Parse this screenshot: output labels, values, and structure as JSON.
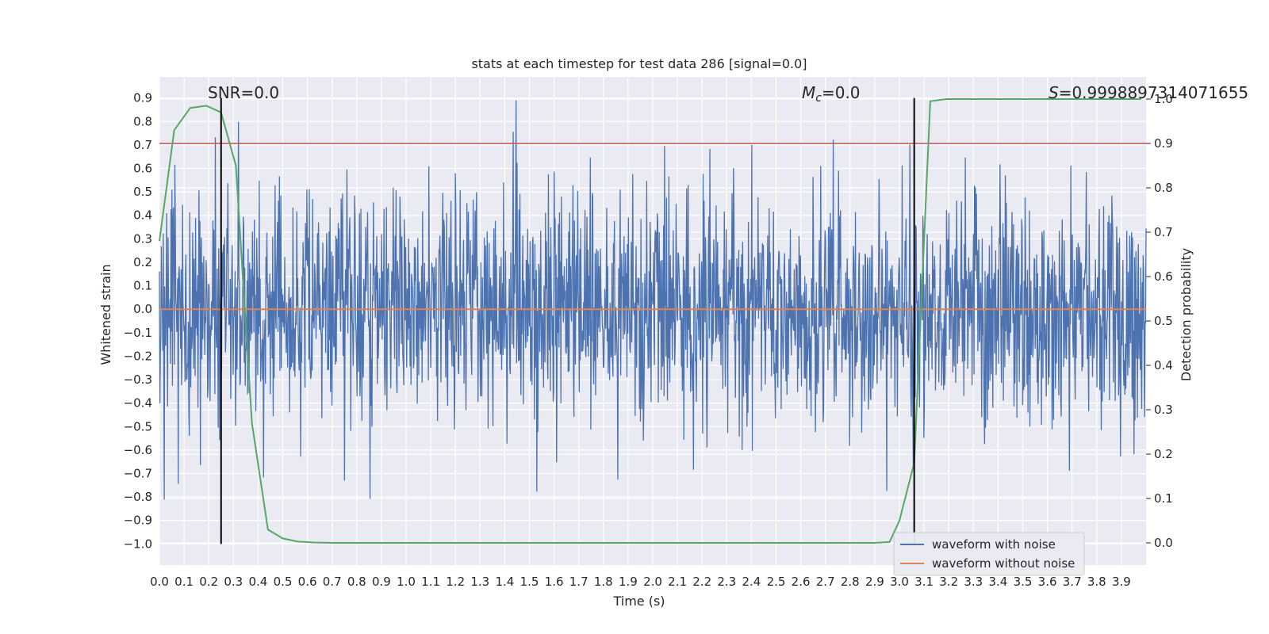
{
  "chart_data": {
    "type": "line",
    "title": "stats at each timestep for test data 286 [signal=0.0]",
    "xlabel": "Time (s)",
    "ylabel_left": "Whitened strain",
    "ylabel_right": "Detection probability",
    "xlim": [
      0.0,
      4.0
    ],
    "ylim_left": [
      -1.09,
      0.99
    ],
    "ylim_right": [
      -0.05,
      1.05
    ],
    "x_ticks": [
      0.0,
      0.1,
      0.2,
      0.3,
      0.4,
      0.5,
      0.6,
      0.7,
      0.8,
      0.9,
      1.0,
      1.1,
      1.2,
      1.3,
      1.4,
      1.5,
      1.6,
      1.7,
      1.8,
      1.9,
      2.0,
      2.1,
      2.2,
      2.3,
      2.4,
      2.5,
      2.6,
      2.7,
      2.8,
      2.9,
      3.0,
      3.1,
      3.2,
      3.3,
      3.4,
      3.5,
      3.6,
      3.7,
      3.8,
      3.9
    ],
    "y_ticks_left": [
      -1.0,
      -0.9,
      -0.8,
      -0.7,
      -0.6,
      -0.5,
      -0.4,
      -0.3,
      -0.2,
      -0.1,
      0.0,
      0.1,
      0.2,
      0.3,
      0.4,
      0.5,
      0.6,
      0.7,
      0.8,
      0.9
    ],
    "y_ticks_right": [
      0.0,
      0.1,
      0.2,
      0.3,
      0.4,
      0.5,
      0.6,
      0.7,
      0.8,
      0.9,
      1.0
    ],
    "grid": true,
    "legend_position": "lower-right",
    "annotations": {
      "snr": "SNR=0.0",
      "mc": "M",
      "mc_sub": "c",
      "mc_value": "=0.0",
      "s_prefix": "S",
      "s_value": "=0.9998897314071655"
    },
    "series": [
      {
        "name": "waveform with noise",
        "axis": "left",
        "color": "#4c72b0",
        "description_seed": 286,
        "noise_amplitude": 0.25,
        "min": -1.0,
        "max": 0.89
      },
      {
        "name": "waveform without noise",
        "axis": "left",
        "color": "#dd8452",
        "x": [
          0.0,
          4.0
        ],
        "y": [
          0.0,
          0.0
        ]
      },
      {
        "name": "",
        "axis": "right",
        "color": "#55a868",
        "x": [
          0.0,
          0.06,
          0.125,
          0.19,
          0.25,
          0.31,
          0.375,
          0.44,
          0.5,
          0.56,
          0.625,
          0.7,
          1.0,
          2.0,
          2.9,
          2.96,
          3.0,
          3.06,
          3.125,
          3.19,
          3.25,
          3.5,
          3.75,
          3.98
        ],
        "y": [
          0.68,
          0.93,
          0.98,
          0.985,
          0.97,
          0.85,
          0.27,
          0.03,
          0.01,
          0.003,
          0.001,
          0.0,
          0.0,
          0.0,
          0.0,
          0.002,
          0.05,
          0.18,
          0.995,
          1.0,
          1.0,
          1.0,
          1.0,
          1.0
        ]
      }
    ],
    "threshold_line": {
      "axis": "right",
      "value": 0.9,
      "color": "#c44e52"
    },
    "vertical_lines": [
      {
        "x": 0.25,
        "color": "#000000"
      },
      {
        "x": 3.06,
        "color": "#000000"
      }
    ]
  }
}
